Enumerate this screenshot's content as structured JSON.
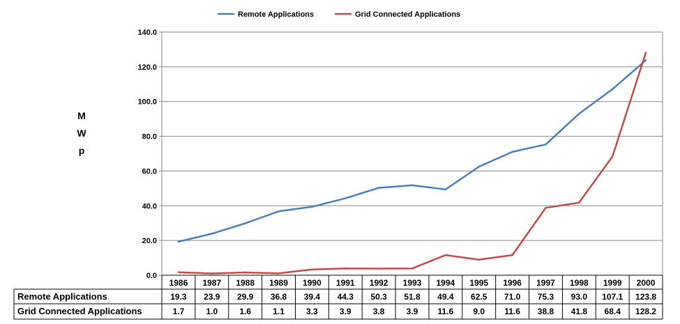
{
  "chart_data": {
    "type": "line",
    "title": "",
    "xlabel": "",
    "ylabel_letters": [
      "M",
      "W",
      "p"
    ],
    "ylim": [
      0,
      140
    ],
    "yticks": [
      "0.0",
      "20.0",
      "40.0",
      "60.0",
      "80.0",
      "100.0",
      "120.0",
      "140.0"
    ],
    "grid": true,
    "legend_position": "top-center",
    "categories": [
      "1986",
      "1987",
      "1988",
      "1989",
      "1990",
      "1991",
      "1992",
      "1993",
      "1994",
      "1995",
      "1996",
      "1997",
      "1998",
      "1999",
      "2000"
    ],
    "series": [
      {
        "name": "Remote Applications",
        "color": "#4a7ebb",
        "values": [
          19.3,
          23.9,
          29.9,
          36.8,
          39.4,
          44.3,
          50.3,
          51.8,
          49.4,
          62.5,
          71.0,
          75.3,
          93.0,
          107.1,
          123.8
        ],
        "labels": [
          "19.3",
          "23.9",
          "29.9",
          "36.8",
          "39.4",
          "44.3",
          "50.3",
          "51.8",
          "49.4",
          "62.5",
          "71.0",
          "75.3",
          "93.0",
          "107.1",
          "123.8"
        ]
      },
      {
        "name": "Grid Connected Applications",
        "color": "#be4b48",
        "values": [
          1.7,
          1.0,
          1.6,
          1.1,
          3.3,
          3.9,
          3.8,
          3.9,
          11.6,
          9.0,
          11.6,
          38.8,
          41.8,
          68.4,
          128.2
        ],
        "labels": [
          "1.7",
          "1.0",
          "1.6",
          "1.1",
          "3.3",
          "3.9",
          "3.8",
          "3.9",
          "11.6",
          "9.0",
          "11.6",
          "38.8",
          "41.8",
          "68.4",
          "128.2"
        ]
      }
    ]
  }
}
